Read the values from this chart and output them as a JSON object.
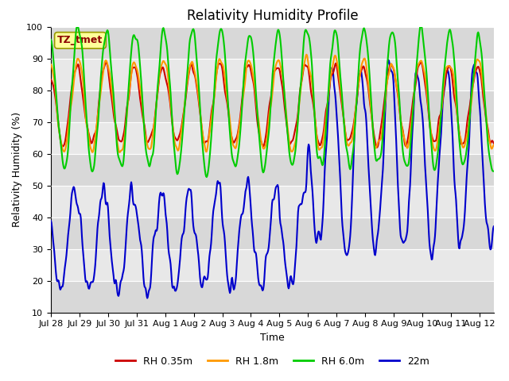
{
  "title": "Relativity Humidity Profile",
  "xlabel": "Time",
  "ylabel": "Relativity Humidity (%)",
  "ylim": [
    10,
    100
  ],
  "legend_labels": [
    "RH 0.35m",
    "RH 1.8m",
    "RH 6.0m",
    "22m"
  ],
  "line_colors": [
    "#cc0000",
    "#ff9900",
    "#00cc00",
    "#0000cc"
  ],
  "annotation_text": "TZ_tmet",
  "annotation_bg": "#ffff99",
  "annotation_border": "#999900",
  "bg_color": "#ffffff",
  "plot_bg_color": "#e0e0e0",
  "grid_color": "#ffffff",
  "yticks": [
    10,
    20,
    30,
    40,
    50,
    60,
    70,
    80,
    90,
    100
  ],
  "xtick_labels": [
    "Jul 28",
    "Jul 29",
    "Jul 30",
    "Jul 31",
    "Aug 1",
    "Aug 2",
    "Aug 3",
    "Aug 4",
    "Aug 5",
    "Aug 6",
    "Aug 7",
    "Aug 8",
    "Aug 9",
    "Aug 10",
    "Aug 11",
    "Aug 12"
  ],
  "title_fontsize": 12,
  "axis_fontsize": 9,
  "tick_fontsize": 8,
  "legend_fontsize": 9,
  "linewidth": 1.5
}
